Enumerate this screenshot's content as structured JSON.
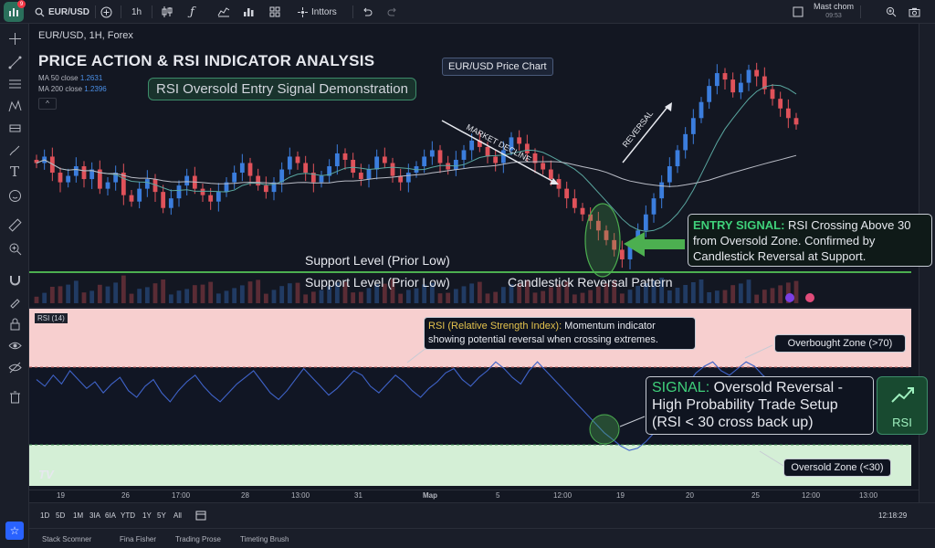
{
  "topbar": {
    "symbol": "EUR/USD",
    "interval": "1h",
    "indicators_label": "Inttors",
    "user_name": "Mast chom",
    "clock": "09:53",
    "logo_badge": "9"
  },
  "chart_header": {
    "symbol_line": "EUR/USD, 1H, Forex",
    "title": "PRICE ACTION & RSI INDICATOR ANALYSIS",
    "ma50_label": "MA 50 close",
    "ma50_value": "1.2631",
    "ma200_label": "MA 200 close",
    "ma200_value": "1.2396",
    "collapse_glyph": "^"
  },
  "annotations": {
    "demo_label": "RSI Oversold Entry Signal Demonstration",
    "price_chart_label": "EUR/USD Price Chart",
    "market_decline": "MARKET DECLINE",
    "reversal": "REVERSAL",
    "support_label_1": "Support Level (Prior Low)",
    "support_label_2": "Support Level (Prior Low)",
    "reversal_pattern": "Candlestick Reversal Pattern",
    "entry_signal_head": "ENTRY SIGNAL:",
    "entry_signal_body": " RSI Crossing Above 30 from Oversold Zone. Confirmed by Candlestick Reversal at Support.",
    "rsi_pane_label": "RSI (14)",
    "rsi_info_head": "RSI (Relative Strength Index):",
    "rsi_info_body": " Momentum indicator showing potential reversal when crossing extremes.",
    "overbought_label": "Overbought Zone (>70)",
    "oversold_label": "Oversold Zone (<30)",
    "signal_head": "SIGNAL:",
    "signal_body": " Oversold Reversal - High Probability Trade Setup (RSI < 30 cross back up)",
    "rsi_badge": "RSI",
    "tv_mark": "TV"
  },
  "time_axis": [
    "19",
    "26",
    "17:00",
    "28",
    "13:00",
    "31",
    "Map",
    "5",
    "12:00",
    "19",
    "20",
    "25",
    "12:00",
    "13:00"
  ],
  "range_bar": {
    "ranges": [
      "1D",
      "5D",
      "1M",
      "3IA",
      "6IA",
      "YTD",
      "1Y",
      "5Y",
      "All"
    ],
    "clock": "12:18:29"
  },
  "bottom_tabs": [
    "Stack Scomner",
    "Fina Fisher",
    "Trading Prose",
    "Timeting Brush"
  ],
  "colors": {
    "up": "#3b7ddd",
    "down": "#e0525a",
    "support": "#4caf50",
    "overbought_bg": "#f6d0d0",
    "oversold_bg": "#d3efd6",
    "rsi_line": "#3f63c9"
  },
  "chart_data": {
    "type": "line",
    "price_closes": [
      58,
      60,
      55,
      52,
      54,
      57,
      53,
      56,
      50,
      52,
      55,
      48,
      46,
      50,
      53,
      49,
      44,
      47,
      51,
      54,
      50,
      48,
      46,
      49,
      52,
      55,
      58,
      54,
      51,
      49,
      52,
      56,
      60,
      58,
      55,
      52,
      54,
      57,
      61,
      59,
      55,
      53,
      56,
      60,
      58,
      54,
      52,
      55,
      57,
      60,
      62,
      58,
      56,
      59,
      62,
      65,
      63,
      60,
      58,
      62,
      66,
      64,
      61,
      58,
      56,
      53,
      50,
      47,
      44,
      42,
      40,
      37,
      34,
      31,
      28,
      32,
      37,
      42,
      47,
      52,
      57,
      62,
      67,
      72,
      77,
      82,
      86,
      84,
      80,
      83,
      87,
      85,
      81,
      78,
      75,
      72,
      70
    ],
    "rsi_values": [
      58,
      55,
      60,
      56,
      62,
      58,
      54,
      57,
      52,
      56,
      59,
      53,
      50,
      55,
      58,
      52,
      48,
      53,
      57,
      60,
      55,
      51,
      48,
      52,
      56,
      59,
      62,
      57,
      52,
      49,
      53,
      58,
      63,
      59,
      55,
      51,
      54,
      58,
      62,
      60,
      55,
      52,
      56,
      60,
      57,
      53,
      50,
      54,
      57,
      61,
      63,
      58,
      55,
      59,
      62,
      66,
      63,
      59,
      56,
      62,
      66,
      62,
      58,
      54,
      50,
      46,
      42,
      38,
      34,
      31,
      28,
      26,
      27,
      30,
      34,
      39,
      44,
      50,
      56,
      61,
      64,
      66,
      62,
      60,
      63,
      66,
      64,
      60,
      57,
      54,
      52,
      50
    ],
    "overbought": 70,
    "oversold": 30
  }
}
